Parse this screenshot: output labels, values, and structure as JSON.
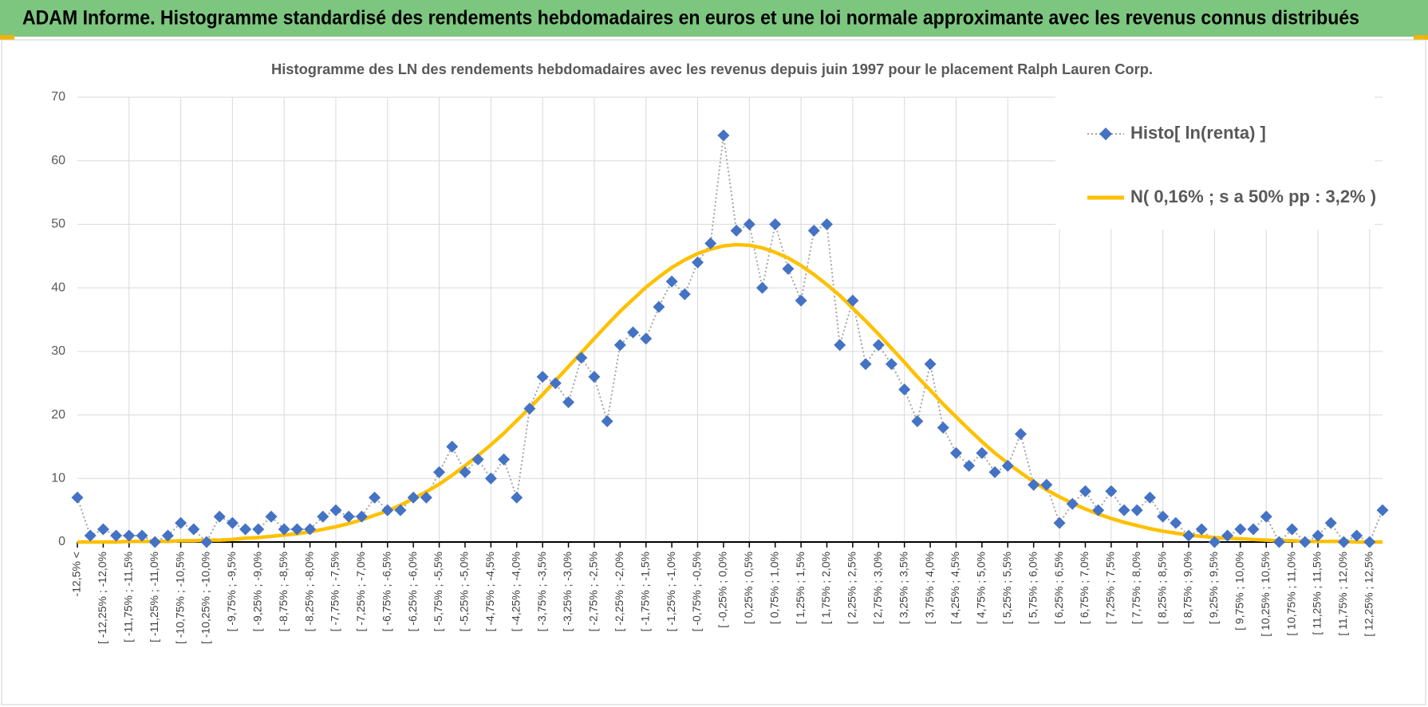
{
  "header": {
    "title": "ADAM Informe. Histogramme standardisé des rendements hebdomadaires en euros et une loi normale approximante avec les revenus connus distribués"
  },
  "chart_data": {
    "type": "line",
    "title": "Histogramme  des LN des rendements hebdomadaires avec les revenus depuis juin 1997 pour le placement Ralph  Lauren Corp.",
    "categories": [
      "-12,5% <",
      null,
      "[ -12,25% ; -12,0%",
      null,
      "[ -11,75% ; -11,5%",
      null,
      "[ -11,25% ; -11,0%",
      null,
      "[ -10,75% ; -10,5%",
      null,
      "[ -10,25% ; -10,0%",
      null,
      "[ -9,75% ; -9,5%",
      null,
      "[ -9,25% ; -9,0%",
      null,
      "[ -8,75% ; -8,5%",
      null,
      "[ -8,25% ; -8,0%",
      null,
      "[ -7,75% ; -7,5%",
      null,
      "[ -7,25% ; -7,0%",
      null,
      "[ -6,75% ; -6,5%",
      null,
      "[ -6,25% ; -6,0%",
      null,
      "[ -5,75% ; -5,5%",
      null,
      "[ -5,25% ; -5,0%",
      null,
      "[ -4,75% ; -4,5%",
      null,
      "[ -4,25% ; -4,0%",
      null,
      "[ -3,75% ; -3,5%",
      null,
      "[ -3,25% ; -3,0%",
      null,
      "[ -2,75% ; -2,5%",
      null,
      "[ -2,25% ; -2,0%",
      null,
      "[ -1,75% ; -1,5%",
      null,
      "[ -1,25% ; -1,0%",
      null,
      "[ -0,75% ; -0,5%",
      null,
      "[ -0,25% ; 0,0%",
      null,
      "[ 0,25% ; 0,5%",
      null,
      "[ 0,75% ; 1,0%",
      null,
      "[ 1,25% ; 1,5%",
      null,
      "[ 1,75% ; 2,0%",
      null,
      "[ 2,25% ; 2,5%",
      null,
      "[ 2,75% ; 3,0%",
      null,
      "[ 3,25% ; 3,5%",
      null,
      "[ 3,75% ; 4,0%",
      null,
      "[ 4,25% ; 4,5%",
      null,
      "[ 4,75% ; 5,0%",
      null,
      "[ 5,25% ; 5,5%",
      null,
      "[ 5,75% ; 6,0%",
      null,
      "[ 6,25% ; 6,5%",
      null,
      "[ 6,75% ; 7,0%",
      null,
      "[ 7,25% ; 7,5%",
      null,
      "[ 7,75% ; 8,0%",
      null,
      "[ 8,25% ; 8,5%",
      null,
      "[ 8,75% ; 9,0%",
      null,
      "[ 9,25% ; 9,5%",
      null,
      "[ 9,75% ; 10,0%",
      null,
      "[ 10,25% ; 10,5%",
      null,
      "[ 10,75% ; 11,0%",
      null,
      "[ 11,25% ; 11,5%",
      null,
      "[ 11,75% ; 12,0%",
      null,
      "[ 12,25% ; 12,5%",
      null
    ],
    "series": [
      {
        "name": "Histo[ ln(renta) ]",
        "color": "#4472c4",
        "line_color": "#a5a5a5",
        "marker": "diamond",
        "dash": "dotted",
        "values": [
          7,
          1,
          2,
          1,
          1,
          1,
          0,
          1,
          3,
          2,
          0,
          4,
          3,
          2,
          2,
          4,
          2,
          2,
          2,
          4,
          5,
          4,
          4,
          7,
          5,
          5,
          7,
          7,
          11,
          15,
          11,
          13,
          10,
          13,
          7,
          21,
          26,
          25,
          22,
          29,
          26,
          19,
          31,
          33,
          32,
          37,
          41,
          39,
          44,
          47,
          64,
          49,
          50,
          40,
          50,
          43,
          38,
          49,
          50,
          31,
          38,
          28,
          31,
          28,
          24,
          19,
          28,
          18,
          14,
          12,
          14,
          11,
          12,
          17,
          9,
          9,
          3,
          6,
          8,
          5,
          8,
          5,
          5,
          7,
          4,
          3,
          1,
          2,
          0,
          1,
          2,
          2,
          4,
          0,
          2,
          0,
          1,
          3,
          0,
          1,
          0,
          5
        ]
      },
      {
        "name": "N( 0,16% ; s a 50% pp : 3,2% )",
        "color": "#ffc000",
        "values": [
          0.0,
          0.0,
          0.0,
          0.0,
          0.1,
          0.1,
          0.1,
          0.1,
          0.2,
          0.2,
          0.3,
          0.3,
          0.4,
          0.6,
          0.7,
          0.9,
          1.1,
          1.3,
          1.6,
          2.0,
          2.4,
          2.9,
          3.5,
          4.2,
          4.9,
          5.8,
          6.8,
          7.9,
          9.1,
          10.5,
          12.0,
          13.6,
          15.3,
          17.1,
          19.1,
          21.1,
          23.2,
          25.4,
          27.6,
          29.8,
          32.0,
          34.2,
          36.3,
          38.2,
          40.1,
          41.7,
          43.2,
          44.4,
          45.4,
          46.1,
          46.6,
          46.8,
          46.7,
          46.3,
          45.6,
          44.7,
          43.5,
          42.1,
          40.5,
          38.8,
          36.8,
          34.8,
          32.7,
          30.5,
          28.3,
          26.0,
          23.9,
          21.7,
          19.7,
          17.7,
          15.8,
          14.0,
          12.4,
          10.9,
          9.5,
          8.2,
          7.1,
          6.1,
          5.2,
          4.4,
          3.7,
          3.1,
          2.6,
          2.1,
          1.7,
          1.4,
          1.1,
          0.9,
          0.7,
          0.6,
          0.5,
          0.4,
          0.3,
          0.2,
          0.2,
          0.1,
          0.1,
          0.1,
          0.1,
          0.0,
          0.0,
          0.0
        ]
      }
    ],
    "ylim": [
      0,
      70
    ],
    "yticks": [
      0,
      10,
      20,
      30,
      40,
      50,
      60,
      70
    ],
    "grid": true,
    "legend": "top right"
  }
}
